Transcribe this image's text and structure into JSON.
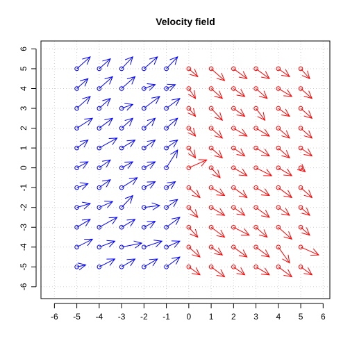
{
  "chart_data": {
    "type": "scatter",
    "title": "Velocity field",
    "xlabel": "",
    "ylabel": "",
    "xlim": [
      -6.6,
      6.3
    ],
    "ylim": [
      -6.6,
      6.4
    ],
    "xticks": [
      -6,
      -5,
      -4,
      -3,
      -2,
      -1,
      0,
      1,
      2,
      3,
      4,
      5,
      6
    ],
    "yticks": [
      -6,
      -5,
      -4,
      -3,
      -2,
      -1,
      0,
      1,
      2,
      3,
      4,
      5,
      6
    ],
    "grid": true,
    "marker": "open-circle-with-arrow",
    "series": [
      {
        "color": "#0000ff",
        "x_range": [
          -5,
          -1,
          1
        ],
        "y_range": [
          -5,
          5,
          1
        ],
        "description_vectors": [
          [
            -5,
            5,
            0.6,
            0.6
          ],
          [
            -4,
            5,
            0.5,
            0.5
          ],
          [
            -3,
            5,
            0.5,
            0.6
          ],
          [
            -2,
            5,
            0.6,
            0.6
          ],
          [
            -1,
            5,
            0.5,
            0.6
          ],
          [
            -5,
            4,
            0.5,
            0.5
          ],
          [
            -4,
            4,
            0.6,
            0.6
          ],
          [
            -3,
            4,
            0.6,
            0.6
          ],
          [
            -2,
            4,
            0.5,
            0.2
          ],
          [
            -1,
            4,
            0.4,
            0.2
          ],
          [
            -5,
            3,
            0.6,
            0.6
          ],
          [
            -4,
            3,
            0.5,
            0.5
          ],
          [
            -3,
            3,
            0.5,
            0.2
          ],
          [
            -2,
            3,
            0.7,
            0.6
          ],
          [
            -1,
            3,
            0.6,
            0.5
          ],
          [
            -5,
            2,
            0.7,
            0.5
          ],
          [
            -4,
            2,
            0.6,
            0.5
          ],
          [
            -3,
            2,
            0.5,
            0.5
          ],
          [
            -2,
            2,
            0.5,
            0.5
          ],
          [
            -1,
            2,
            0.5,
            0.5
          ],
          [
            -5,
            1,
            0.5,
            0.4
          ],
          [
            -4,
            1,
            0.8,
            0.5
          ],
          [
            -3,
            1,
            0.6,
            0.4
          ],
          [
            -2,
            1,
            0.5,
            0.4
          ],
          [
            -1,
            1,
            0.5,
            0.4
          ],
          [
            -5,
            0,
            0.5,
            0.3
          ],
          [
            -4,
            0,
            0.5,
            0.4
          ],
          [
            -3,
            0,
            0.5,
            0.3
          ],
          [
            -2,
            0,
            0.5,
            0.3
          ],
          [
            -1,
            0,
            0.5,
            0.9
          ],
          [
            -5,
            -1,
            0.5,
            0.2
          ],
          [
            -4,
            -1,
            0.5,
            0.4
          ],
          [
            -3,
            -1,
            0.7,
            0.5
          ],
          [
            -2,
            -1,
            0.5,
            0.3
          ],
          [
            -1,
            -1,
            0.4,
            0.3
          ],
          [
            -5,
            -2,
            0.6,
            0.2
          ],
          [
            -4,
            -2,
            0.6,
            0.3
          ],
          [
            -3,
            -2,
            0.5,
            0.6
          ],
          [
            -2,
            -2,
            0.7,
            0.1
          ],
          [
            -1,
            -2,
            0.5,
            0.4
          ],
          [
            -5,
            -3,
            0.6,
            0.4
          ],
          [
            -4,
            -3,
            0.8,
            0.5
          ],
          [
            -3,
            -3,
            0.6,
            0.4
          ],
          [
            -2,
            -3,
            0.5,
            0.3
          ],
          [
            -1,
            -3,
            0.6,
            0.5
          ],
          [
            -5,
            -4,
            0.7,
            0.4
          ],
          [
            -4,
            -4,
            0.7,
            0.3
          ],
          [
            -3,
            -4,
            0.9,
            0.2
          ],
          [
            -2,
            -4,
            0.8,
            0.3
          ],
          [
            -1,
            -4,
            0.6,
            0.3
          ],
          [
            -5,
            -5,
            0.4,
            0.1
          ],
          [
            -4,
            -5,
            0.7,
            0.4
          ],
          [
            -3,
            -5,
            0.6,
            0.4
          ],
          [
            -2,
            -5,
            0.6,
            0.4
          ],
          [
            -1,
            -5,
            0.6,
            0.5
          ]
        ]
      },
      {
        "color": "#ff0000",
        "x_range": [
          0,
          5,
          1
        ],
        "y_range": [
          -5,
          5,
          1
        ],
        "description_vectors": [
          [
            0,
            5,
            0.4,
            -0.4
          ],
          [
            1,
            5,
            0.6,
            -0.6
          ],
          [
            2,
            5,
            0.6,
            -0.5
          ],
          [
            3,
            5,
            0.6,
            -0.5
          ],
          [
            4,
            5,
            0.5,
            -0.4
          ],
          [
            5,
            5,
            0.4,
            -0.5
          ],
          [
            0,
            4,
            0.3,
            -0.5
          ],
          [
            1,
            4,
            0.5,
            -0.5
          ],
          [
            2,
            4,
            0.5,
            -0.4
          ],
          [
            3,
            4,
            0.5,
            -0.5
          ],
          [
            4,
            4,
            0.6,
            -0.4
          ],
          [
            5,
            4,
            0.5,
            -0.5
          ],
          [
            0,
            3,
            0.3,
            -0.4
          ],
          [
            1,
            3,
            0.5,
            -0.6
          ],
          [
            2,
            3,
            0.5,
            -0.4
          ],
          [
            3,
            3,
            0.4,
            -0.6
          ],
          [
            4,
            3,
            0.5,
            -0.4
          ],
          [
            5,
            3,
            0.5,
            -0.5
          ],
          [
            0,
            2,
            0.3,
            -0.4
          ],
          [
            1,
            2,
            0.5,
            -0.5
          ],
          [
            2,
            2,
            0.6,
            -0.4
          ],
          [
            3,
            2,
            0.6,
            -0.4
          ],
          [
            4,
            2,
            0.5,
            -0.5
          ],
          [
            5,
            2,
            0.5,
            -0.5
          ],
          [
            0,
            1,
            0.3,
            -0.5
          ],
          [
            1,
            1,
            0.5,
            -0.5
          ],
          [
            2,
            1,
            0.5,
            -0.4
          ],
          [
            3,
            1,
            0.6,
            -0.4
          ],
          [
            4,
            1,
            0.5,
            -0.5
          ],
          [
            5,
            1,
            0.5,
            -0.4
          ],
          [
            0,
            0,
            0.8,
            0.4
          ],
          [
            1,
            0,
            0.4,
            -0.5
          ],
          [
            2,
            0,
            0.6,
            -0.4
          ],
          [
            3,
            0,
            0.7,
            -0.4
          ],
          [
            4,
            0,
            0.6,
            -0.4
          ],
          [
            5,
            0,
            0.2,
            -0.2
          ],
          [
            0,
            -1,
            0.5,
            -0.5
          ],
          [
            1,
            -1,
            0.6,
            -0.4
          ],
          [
            2,
            -1,
            0.6,
            -0.5
          ],
          [
            3,
            -1,
            0.6,
            -0.4
          ],
          [
            4,
            -1,
            0.6,
            -0.5
          ],
          [
            5,
            -1,
            0.5,
            -0.5
          ],
          [
            0,
            -2,
            0.4,
            -0.5
          ],
          [
            1,
            -2,
            0.6,
            -0.4
          ],
          [
            2,
            -2,
            0.5,
            -0.4
          ],
          [
            3,
            -2,
            0.6,
            -0.5
          ],
          [
            4,
            -2,
            0.5,
            -0.4
          ],
          [
            5,
            -2,
            0.4,
            -0.4
          ],
          [
            0,
            -3,
            0.4,
            -0.5
          ],
          [
            1,
            -3,
            0.6,
            -0.5
          ],
          [
            2,
            -3,
            0.7,
            -0.4
          ],
          [
            3,
            -3,
            0.5,
            -0.5
          ],
          [
            4,
            -3,
            0.6,
            -0.6
          ],
          [
            5,
            -3,
            0.4,
            -0.4
          ],
          [
            0,
            -4,
            0.5,
            -0.5
          ],
          [
            1,
            -4,
            0.5,
            -0.4
          ],
          [
            2,
            -4,
            0.6,
            -0.5
          ],
          [
            3,
            -4,
            0.6,
            -0.5
          ],
          [
            4,
            -4,
            0.5,
            -0.8
          ],
          [
            5,
            -4,
            0.8,
            -0.4
          ],
          [
            0,
            -5,
            0.5,
            -0.4
          ],
          [
            1,
            -5,
            0.6,
            -0.5
          ],
          [
            2,
            -5,
            0.5,
            -0.4
          ],
          [
            3,
            -5,
            0.6,
            -0.4
          ],
          [
            4,
            -5,
            0.6,
            -0.5
          ],
          [
            5,
            -5,
            0.5,
            -0.4
          ]
        ]
      }
    ]
  }
}
